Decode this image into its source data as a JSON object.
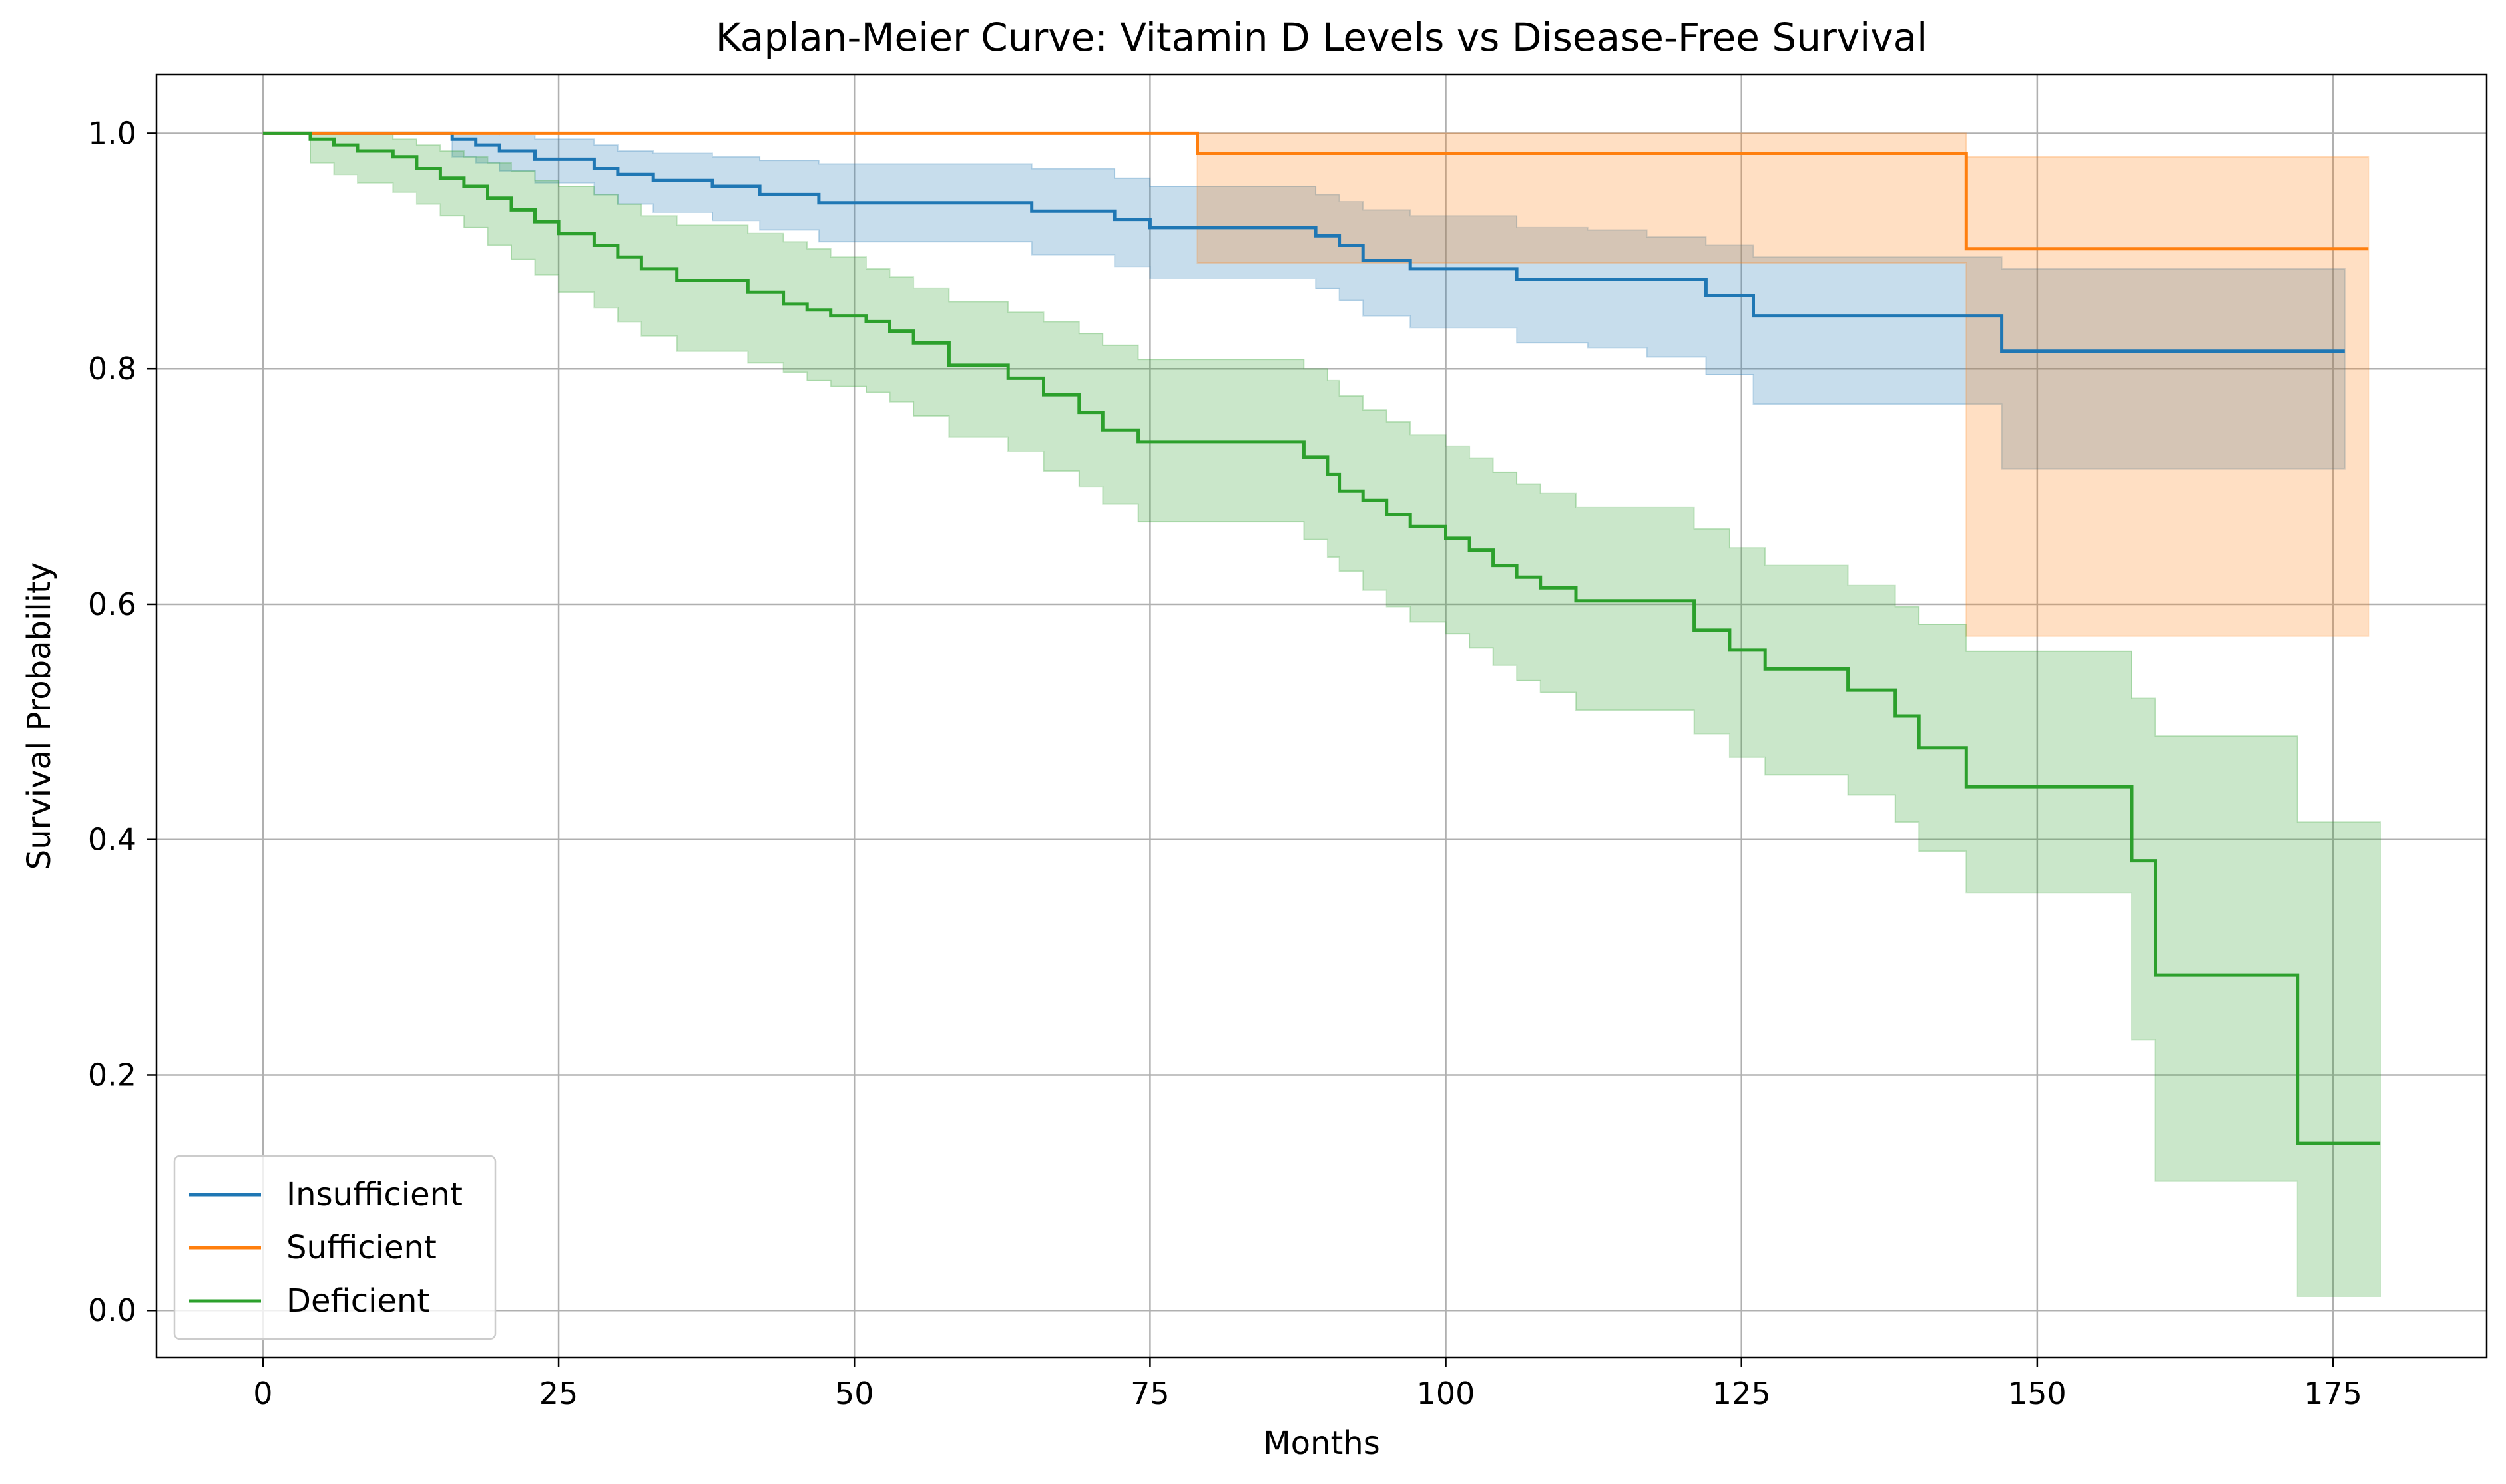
{
  "chart_data": {
    "type": "line",
    "title": "Kaplan-Meier Curve: Vitamin D Levels vs Disease-Free Survival",
    "xlabel": "Months",
    "ylabel": "Survival Probability",
    "xlim": [
      -9,
      188
    ],
    "ylim": [
      -0.04,
      1.05
    ],
    "xticks": [
      0,
      25,
      50,
      75,
      100,
      125,
      150,
      175
    ],
    "xtick_labels": [
      "0",
      "25",
      "50",
      "75",
      "100",
      "125",
      "150",
      "175"
    ],
    "yticks": [
      0.0,
      0.2,
      0.4,
      0.6,
      0.8,
      1.0
    ],
    "ytick_labels": [
      "0.0",
      "0.2",
      "0.4",
      "0.6",
      "0.8",
      "1.0"
    ],
    "grid": true,
    "legend_position": "lower-left",
    "series": [
      {
        "name": "Insufficient",
        "color": "#1f77b4",
        "x": [
          0,
          16,
          18,
          20,
          23,
          28,
          30,
          33,
          38,
          42,
          47,
          65,
          72,
          75,
          89,
          91,
          93,
          97,
          106,
          112,
          117,
          122,
          126,
          147,
          176
        ],
        "y": [
          1.0,
          0.995,
          0.99,
          0.985,
          0.978,
          0.97,
          0.965,
          0.96,
          0.955,
          0.948,
          0.941,
          0.934,
          0.927,
          0.92,
          0.913,
          0.905,
          0.892,
          0.885,
          0.876,
          0.876,
          0.876,
          0.862,
          0.845,
          0.815,
          0.815
        ],
        "ci_upper": [
          1.0,
          1.0,
          1.0,
          0.998,
          0.995,
          0.99,
          0.985,
          0.983,
          0.98,
          0.977,
          0.974,
          0.97,
          0.962,
          0.955,
          0.948,
          0.942,
          0.935,
          0.93,
          0.92,
          0.918,
          0.912,
          0.905,
          0.895,
          0.885,
          0.885
        ],
        "ci_lower": [
          1.0,
          0.98,
          0.975,
          0.968,
          0.958,
          0.948,
          0.94,
          0.933,
          0.926,
          0.918,
          0.908,
          0.897,
          0.887,
          0.877,
          0.868,
          0.858,
          0.845,
          0.835,
          0.822,
          0.818,
          0.81,
          0.795,
          0.77,
          0.715,
          0.715
        ]
      },
      {
        "name": "Sufficient",
        "color": "#ff7f0e",
        "x": [
          0,
          79,
          144,
          178
        ],
        "y": [
          1.0,
          0.983,
          0.902,
          0.902
        ],
        "ci_upper": [
          1.0,
          1.0,
          0.98,
          0.98
        ],
        "ci_lower": [
          1.0,
          0.89,
          0.573,
          0.573
        ]
      },
      {
        "name": "Deficient",
        "color": "#2ca02c",
        "x": [
          0,
          4,
          6,
          8,
          11,
          13,
          15,
          17,
          19,
          21,
          23,
          25,
          28,
          30,
          32,
          35,
          41,
          44,
          46,
          48,
          51,
          53,
          55,
          58,
          63,
          66,
          69,
          71,
          74,
          88,
          90,
          91,
          93,
          95,
          97,
          100,
          102,
          104,
          106,
          108,
          111,
          121,
          124,
          127,
          129,
          134,
          138,
          140,
          144,
          158,
          160,
          172,
          179
        ],
        "y": [
          1.0,
          0.995,
          0.99,
          0.985,
          0.98,
          0.97,
          0.962,
          0.955,
          0.945,
          0.935,
          0.925,
          0.915,
          0.905,
          0.895,
          0.885,
          0.875,
          0.865,
          0.855,
          0.85,
          0.845,
          0.84,
          0.832,
          0.822,
          0.803,
          0.792,
          0.778,
          0.763,
          0.748,
          0.738,
          0.725,
          0.71,
          0.696,
          0.688,
          0.676,
          0.666,
          0.656,
          0.646,
          0.633,
          0.623,
          0.614,
          0.603,
          0.578,
          0.561,
          0.545,
          0.545,
          0.527,
          0.505,
          0.478,
          0.445,
          0.382,
          0.285,
          0.142,
          0.142
        ],
        "ci_upper": [
          1.0,
          1.0,
          1.0,
          1.0,
          0.995,
          0.99,
          0.985,
          0.98,
          0.975,
          0.968,
          0.96,
          0.955,
          0.948,
          0.94,
          0.93,
          0.922,
          0.915,
          0.908,
          0.902,
          0.895,
          0.885,
          0.878,
          0.868,
          0.857,
          0.848,
          0.84,
          0.83,
          0.82,
          0.808,
          0.8,
          0.79,
          0.777,
          0.765,
          0.755,
          0.744,
          0.734,
          0.724,
          0.712,
          0.702,
          0.694,
          0.682,
          0.664,
          0.648,
          0.633,
          0.633,
          0.616,
          0.598,
          0.583,
          0.56,
          0.52,
          0.488,
          0.415,
          0.415
        ],
        "ci_lower": [
          1.0,
          0.975,
          0.965,
          0.958,
          0.95,
          0.94,
          0.93,
          0.92,
          0.905,
          0.893,
          0.88,
          0.865,
          0.852,
          0.84,
          0.828,
          0.815,
          0.805,
          0.797,
          0.79,
          0.785,
          0.78,
          0.772,
          0.76,
          0.742,
          0.73,
          0.713,
          0.7,
          0.685,
          0.67,
          0.655,
          0.64,
          0.628,
          0.612,
          0.598,
          0.585,
          0.575,
          0.563,
          0.548,
          0.535,
          0.525,
          0.51,
          0.49,
          0.47,
          0.455,
          0.455,
          0.438,
          0.415,
          0.39,
          0.355,
          0.23,
          0.11,
          0.012,
          0.012
        ]
      }
    ]
  }
}
